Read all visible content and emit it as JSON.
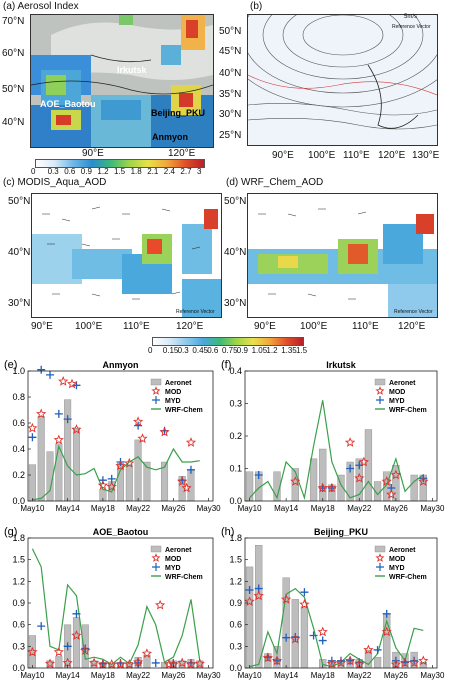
{
  "maps": {
    "a": {
      "title": "(a) Aerosol Index",
      "lat_left": [
        "70°N",
        "60°N",
        "50°N",
        "40°N"
      ],
      "lat_right": [
        "50°N",
        "45°N",
        "40°N",
        "35°N",
        "30°N",
        "25°N"
      ],
      "lon": [
        "90°E",
        "120°E"
      ],
      "places": [
        "Irkutsk",
        "AOE_Baotou",
        "Beijing_PKU",
        "Anmyon"
      ],
      "colorbar": [
        "0",
        "0.3",
        "0.6",
        "0.9",
        "1.2",
        "1.5",
        "1.8",
        "2.1",
        "2.4",
        "2.7",
        "3"
      ]
    },
    "b": {
      "title": "(b)",
      "lon": [
        "90°E",
        "100°E",
        "110°E",
        "120°E",
        "130°E"
      ],
      "ref": "Reference Vector",
      "ref_val": "5m/s"
    },
    "c": {
      "title": "(c) MODIS_Aqua_AOD",
      "lat": [
        "50°N",
        "40°N",
        "30°N"
      ],
      "lon": [
        "90°E",
        "100°E",
        "110°E",
        "120°E"
      ],
      "ref": "Reference Vector"
    },
    "d": {
      "title": "(d) WRF_Chem_AOD",
      "lat": [
        "50°N",
        "40°N",
        "30°N"
      ],
      "lon": [
        "90°E",
        "100°E",
        "110°E",
        "120°E"
      ],
      "ref": "Reference Vector"
    },
    "aod_colorbar": [
      "0",
      "0.15",
      "0.3",
      "0.45",
      "0.6",
      "0.75",
      "0.9",
      "1.05",
      "1.2",
      "1.35",
      "1.5"
    ]
  },
  "chart_data": [
    {
      "type": "bar",
      "panel": "(e)",
      "title": "Anmyon",
      "x_ticks": [
        "May10",
        "May14",
        "May18",
        "May22",
        "May26",
        "May30"
      ],
      "ylim": [
        0,
        1.0
      ],
      "y_ticks": [
        "0.0",
        "0.2",
        "0.4",
        "0.6",
        "0.8",
        "1.0"
      ],
      "legend": [
        "Aeronet",
        "MOD",
        "MYD",
        "WRF-Chem"
      ],
      "aeronet": [
        [
          10,
          0.28
        ],
        [
          11,
          0.65
        ],
        [
          12,
          0.38
        ],
        [
          13,
          0.44
        ],
        [
          14,
          0.78
        ],
        [
          15,
          0.56
        ],
        [
          18,
          0.09
        ],
        [
          19,
          0.15
        ],
        [
          20,
          0.29
        ],
        [
          21,
          0.28
        ],
        [
          22,
          0.47
        ],
        [
          23,
          0.3
        ],
        [
          25,
          0.3
        ],
        [
          27,
          0.19
        ],
        [
          28,
          0.24
        ]
      ],
      "mod": [
        [
          10,
          0.56
        ],
        [
          11,
          0.67
        ],
        [
          13,
          0.47
        ],
        [
          13.5,
          0.92
        ],
        [
          14.5,
          0.9
        ],
        [
          15,
          0.55
        ],
        [
          18,
          0.12
        ],
        [
          19,
          0.11
        ],
        [
          20,
          0.27
        ],
        [
          21,
          0.29
        ],
        [
          22,
          0.61
        ],
        [
          22.5,
          0.48
        ],
        [
          25,
          0.53
        ],
        [
          27,
          0.15
        ],
        [
          27.5,
          0.1
        ],
        [
          28,
          0.45
        ]
      ],
      "myd": [
        [
          10,
          0.49
        ],
        [
          11,
          1.01
        ],
        [
          12,
          0.97
        ],
        [
          13,
          0.67
        ],
        [
          14,
          0.63
        ],
        [
          15,
          0.89
        ],
        [
          18,
          0.16
        ],
        [
          19,
          0.17
        ],
        [
          20,
          0.3
        ],
        [
          22,
          0.58
        ],
        [
          25,
          0.54
        ],
        [
          27,
          0.16
        ],
        [
          28,
          0.24
        ]
      ],
      "wrf": [
        [
          10,
          0.01
        ],
        [
          11,
          0.02
        ],
        [
          12,
          0.08
        ],
        [
          13,
          0.42
        ],
        [
          14,
          0.27
        ],
        [
          15,
          0.2
        ],
        [
          16,
          0.21
        ],
        [
          17,
          0.25
        ],
        [
          18,
          0.09
        ],
        [
          19,
          0.07
        ],
        [
          20,
          0.24
        ],
        [
          21,
          0.3
        ],
        [
          22,
          0.34
        ],
        [
          23,
          0.26
        ],
        [
          24,
          0.24
        ],
        [
          25,
          0.26
        ],
        [
          26,
          0.4
        ],
        [
          27,
          0.3
        ],
        [
          28,
          0.3
        ],
        [
          29,
          0.31
        ]
      ]
    },
    {
      "type": "bar",
      "panel": "(f)",
      "title": "Irkutsk",
      "x_ticks": [
        "May10",
        "May14",
        "May18",
        "May22",
        "May26",
        "May30"
      ],
      "ylim": [
        0,
        0.4
      ],
      "y_ticks": [
        "0.0",
        "0.1",
        "0.2",
        "0.3",
        "0.4"
      ],
      "legend": [
        "Aeronet",
        "MOD",
        "MYD",
        "WRF-Chem"
      ],
      "aeronet": [
        [
          10,
          0.09
        ],
        [
          11,
          0.09
        ],
        [
          13,
          0.09
        ],
        [
          15,
          0.1
        ],
        [
          17,
          0.13
        ],
        [
          18,
          0.16
        ],
        [
          19,
          0.05
        ],
        [
          20,
          0.08
        ],
        [
          21,
          0.12
        ],
        [
          22,
          0.13
        ],
        [
          23,
          0.22
        ],
        [
          24,
          0.06
        ],
        [
          25,
          0.09
        ],
        [
          26,
          0.11
        ],
        [
          28,
          0.08
        ],
        [
          29,
          0.08
        ]
      ],
      "mod": [
        [
          15,
          0.06
        ],
        [
          18,
          0.04
        ],
        [
          19,
          0.04
        ],
        [
          21,
          0.18
        ],
        [
          22,
          0.07
        ],
        [
          22.5,
          0.12
        ],
        [
          25,
          0.06
        ],
        [
          25.5,
          0.02
        ],
        [
          26,
          0.08
        ],
        [
          29,
          0.06
        ]
      ],
      "myd": [
        [
          11,
          0.08
        ],
        [
          18,
          0.04
        ],
        [
          19,
          0.04
        ],
        [
          21,
          0.1
        ],
        [
          22,
          0.11
        ],
        [
          25.5,
          0.04
        ],
        [
          29,
          0.07
        ]
      ],
      "wrf": [
        [
          10,
          0.01
        ],
        [
          11,
          0.04
        ],
        [
          12,
          0.06
        ],
        [
          13,
          0.01
        ],
        [
          14,
          0.12
        ],
        [
          15,
          0.09
        ],
        [
          16,
          0.01
        ],
        [
          17,
          0.17
        ],
        [
          18,
          0.31
        ],
        [
          19,
          0.12
        ],
        [
          20,
          0.05
        ],
        [
          21,
          0.01
        ],
        [
          22,
          0.02
        ],
        [
          23,
          0.06
        ],
        [
          24,
          0.02
        ],
        [
          25,
          0.05
        ],
        [
          26,
          0.13
        ],
        [
          27,
          0.03
        ],
        [
          28,
          0.06
        ],
        [
          29,
          0.08
        ]
      ]
    },
    {
      "type": "bar",
      "panel": "(g)",
      "title": "AOE_Baotou",
      "x_ticks": [
        "May10",
        "May14",
        "May18",
        "May22",
        "May26",
        "May30"
      ],
      "ylim": [
        0,
        1.8
      ],
      "y_ticks": [
        "0.0",
        "0.3",
        "0.6",
        "0.9",
        "1.2",
        "1.5",
        "1.8"
      ],
      "legend": [
        "Aeronet",
        "MOD",
        "MYD",
        "WRF-Chem"
      ],
      "aeronet": [
        [
          10,
          0.45
        ],
        [
          12,
          0.1
        ],
        [
          13,
          0.16
        ],
        [
          14,
          0.6
        ],
        [
          15,
          0.7
        ],
        [
          16,
          0.6
        ],
        [
          17,
          0.1
        ],
        [
          18,
          0.08
        ],
        [
          19,
          0.06
        ],
        [
          20,
          0.06
        ],
        [
          21,
          0.08
        ],
        [
          22,
          0.15
        ],
        [
          23,
          0.18
        ],
        [
          25,
          0.08
        ],
        [
          26,
          0.1
        ],
        [
          27,
          0.1
        ],
        [
          28,
          0.12
        ],
        [
          29,
          0.1
        ]
      ],
      "mod": [
        [
          10,
          0.22
        ],
        [
          12,
          0.06
        ],
        [
          13,
          0.22
        ],
        [
          14,
          0.07
        ],
        [
          15,
          0.45
        ],
        [
          16,
          0.24
        ],
        [
          17,
          0.07
        ],
        [
          18,
          0.05
        ],
        [
          19,
          0.05
        ],
        [
          20,
          0.05
        ],
        [
          21,
          0.05
        ],
        [
          22,
          0.08
        ],
        [
          23,
          0.2
        ],
        [
          24.5,
          0.87
        ],
        [
          25.5,
          0.05
        ],
        [
          26,
          0.05
        ],
        [
          27,
          0.07
        ],
        [
          28,
          0.05
        ],
        [
          29,
          0.06
        ]
      ],
      "myd": [
        [
          11,
          0.58
        ],
        [
          14,
          0.3
        ],
        [
          15,
          0.75
        ],
        [
          16,
          0.27
        ],
        [
          18,
          0.06
        ],
        [
          20,
          0.07
        ],
        [
          22,
          0.07
        ],
        [
          24,
          0.07
        ],
        [
          26,
          0.07
        ],
        [
          28,
          0.07
        ]
      ],
      "wrf": [
        [
          10,
          1.65
        ],
        [
          11,
          1.4
        ],
        [
          12,
          0.3
        ],
        [
          13,
          0.25
        ],
        [
          14,
          1.15
        ],
        [
          15,
          1.0
        ],
        [
          16,
          0.12
        ],
        [
          17,
          0.15
        ],
        [
          18,
          0.12
        ],
        [
          19,
          0.05
        ],
        [
          20,
          0.15
        ],
        [
          21,
          0.06
        ],
        [
          22,
          0.32
        ],
        [
          23,
          0.85
        ],
        [
          24,
          0.6
        ],
        [
          25,
          0.08
        ],
        [
          26,
          0.15
        ],
        [
          27,
          0.45
        ],
        [
          28,
          0.95
        ],
        [
          29,
          0.1
        ]
      ]
    },
    {
      "type": "bar",
      "panel": "(h)",
      "title": "Beijing_PKU",
      "x_ticks": [
        "May10",
        "May14",
        "May18",
        "May22",
        "May26",
        "May30"
      ],
      "ylim": [
        0,
        1.8
      ],
      "y_ticks": [
        "0.0",
        "0.3",
        "0.6",
        "0.9",
        "1.2",
        "1.5",
        "1.8"
      ],
      "legend": [
        "Aeronet",
        "MOD",
        "MYD",
        "WRF-Chem"
      ],
      "aeronet": [
        [
          10,
          1.4
        ],
        [
          11,
          1.7
        ],
        [
          12,
          0.2
        ],
        [
          13,
          0.3
        ],
        [
          14,
          1.25
        ],
        [
          15,
          0.95
        ],
        [
          16,
          0.85
        ],
        [
          18,
          0.12
        ],
        [
          19,
          0.1
        ],
        [
          20,
          0.1
        ],
        [
          21,
          0.12
        ],
        [
          22,
          0.12
        ],
        [
          23,
          0.25
        ],
        [
          24,
          0.15
        ],
        [
          25,
          0.75
        ],
        [
          26,
          0.22
        ],
        [
          27,
          0.2
        ],
        [
          28,
          0.22
        ],
        [
          29,
          0.08
        ]
      ],
      "mod": [
        [
          10,
          0.92
        ],
        [
          11,
          1.0
        ],
        [
          12,
          0.14
        ],
        [
          13,
          0.1
        ],
        [
          14,
          0.95
        ],
        [
          15,
          0.4
        ],
        [
          16,
          0.88
        ],
        [
          18,
          0.5
        ],
        [
          19,
          0.06
        ],
        [
          20,
          0.07
        ],
        [
          21,
          0.1
        ],
        [
          22,
          0.05
        ],
        [
          23,
          0.25
        ],
        [
          25,
          0.5
        ],
        [
          26,
          0.05
        ],
        [
          27,
          0.07
        ],
        [
          28,
          0.07
        ],
        [
          29,
          0.1
        ]
      ],
      "myd": [
        [
          10,
          1.08
        ],
        [
          11,
          1.1
        ],
        [
          12,
          0.15
        ],
        [
          13,
          0.1
        ],
        [
          14,
          0.42
        ],
        [
          15,
          0.43
        ],
        [
          16,
          1.05
        ],
        [
          17,
          0.45
        ],
        [
          18,
          0.38
        ],
        [
          19,
          0.1
        ],
        [
          20,
          0.1
        ],
        [
          21,
          0.1
        ],
        [
          22,
          0.08
        ],
        [
          24,
          0.25
        ],
        [
          25,
          0.75
        ],
        [
          26,
          0.1
        ],
        [
          27,
          0.08
        ],
        [
          28,
          0.1
        ]
      ],
      "wrf": [
        [
          10,
          0.02
        ],
        [
          11,
          0.05
        ],
        [
          12,
          0.5
        ],
        [
          13,
          0.2
        ],
        [
          14,
          1.02
        ],
        [
          15,
          1.1
        ],
        [
          16,
          0.98
        ],
        [
          17,
          0.55
        ],
        [
          18,
          0.05
        ],
        [
          19,
          0.02
        ],
        [
          20,
          0.08
        ],
        [
          21,
          0.2
        ],
        [
          22,
          0.12
        ],
        [
          23,
          0.05
        ],
        [
          24,
          0.2
        ],
        [
          25,
          0.65
        ],
        [
          26,
          0.28
        ],
        [
          27,
          0.1
        ],
        [
          28,
          0.55
        ],
        [
          29,
          0.52
        ]
      ]
    }
  ]
}
